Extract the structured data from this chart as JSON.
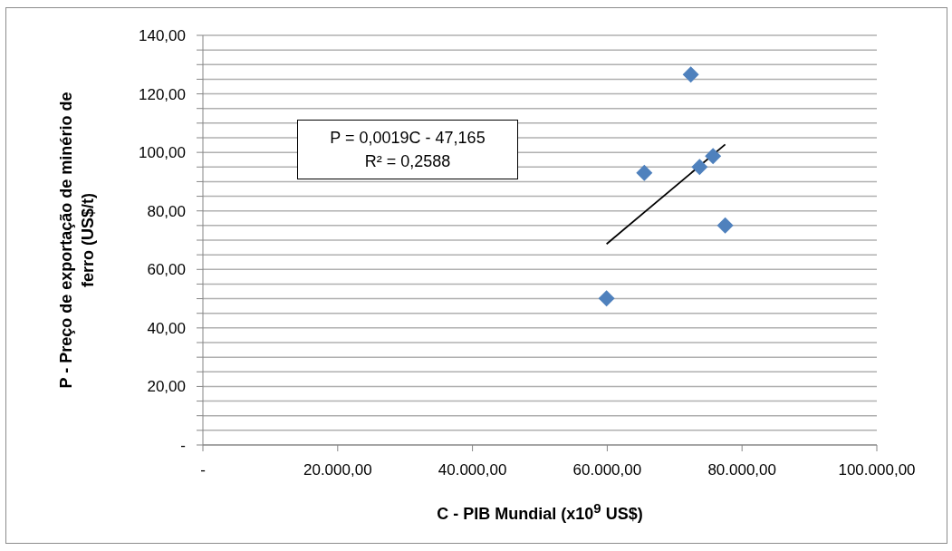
{
  "chart_data": {
    "type": "scatter",
    "xlabel": "C - PIB Mundial (x10$^{9}$ US$)",
    "ylabel": "P - Preço de exportação de minério de ferro (US$/t)",
    "annotations": [
      "P = 0,0019C - 47,165",
      "R² = 0,2588"
    ],
    "series": [
      {
        "color": "#4f81bd",
        "marker": "diamond",
        "x": [
          72400,
          65500,
          73700,
          75700,
          77500,
          59900
        ],
        "values": [
          126.6,
          93.0,
          95.0,
          98.7,
          75.0,
          50.1
        ]
      },
      {
        "type": "line",
        "color": "#000000",
        "marker": "none",
        "x": [
          59900,
          77500
        ],
        "values": [
          68.7,
          102.7
        ]
      }
    ],
    "xlim": [
      0,
      100000
    ],
    "xticks": [
      {
        "value": 0,
        "label": "-"
      },
      {
        "value": 20000,
        "label": "20.000,00"
      },
      {
        "value": 40000,
        "label": "40.000,00"
      },
      {
        "value": 60000,
        "label": "60.000,00"
      },
      {
        "value": 80000,
        "label": "80.000,00"
      },
      {
        "value": 100000,
        "label": "100.000,00"
      }
    ],
    "ylim": [
      0,
      140
    ],
    "yticks": [
      {
        "value": 0,
        "label": "-"
      },
      {
        "value": 5,
        "label": null
      },
      {
        "value": 10,
        "label": null
      },
      {
        "value": 15,
        "label": null
      },
      {
        "value": 20,
        "label": "20,00"
      },
      {
        "value": 25,
        "label": null
      },
      {
        "value": 30,
        "label": null
      },
      {
        "value": 35,
        "label": null
      },
      {
        "value": 40,
        "label": "40,00"
      },
      {
        "value": 45,
        "label": null
      },
      {
        "value": 50,
        "label": null
      },
      {
        "value": 55,
        "label": null
      },
      {
        "value": 60,
        "label": "60,00"
      },
      {
        "value": 65,
        "label": null
      },
      {
        "value": 70,
        "label": null
      },
      {
        "value": 75,
        "label": null
      },
      {
        "value": 80,
        "label": "80,00"
      },
      {
        "value": 85,
        "label": null
      },
      {
        "value": 90,
        "label": null
      },
      {
        "value": 95,
        "label": null
      },
      {
        "value": 100,
        "label": "100,00"
      },
      {
        "value": 105,
        "label": null
      },
      {
        "value": 110,
        "label": null
      },
      {
        "value": 115,
        "label": null
      },
      {
        "value": 120,
        "label": "120,00"
      },
      {
        "value": 125,
        "label": null
      },
      {
        "value": 130,
        "label": null
      },
      {
        "value": 135,
        "label": null
      },
      {
        "value": 140,
        "label": "140,00"
      }
    ],
    "grid": "y"
  }
}
